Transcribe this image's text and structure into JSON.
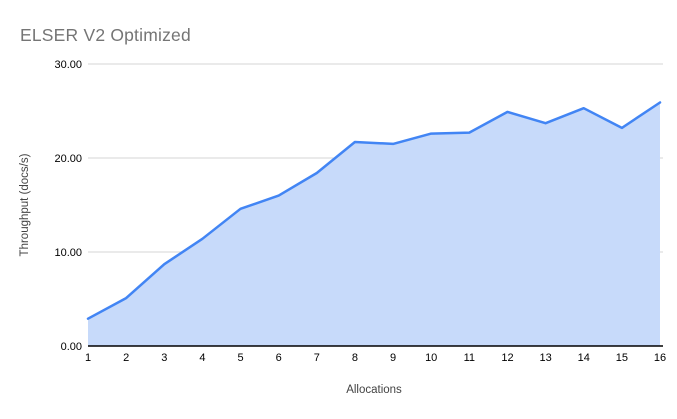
{
  "chart_data": {
    "type": "area",
    "title": "ELSER V2 Optimized",
    "xlabel": "Allocations",
    "ylabel": "Throughput (docs/s)",
    "x": [
      1,
      2,
      3,
      4,
      5,
      6,
      7,
      8,
      9,
      10,
      11,
      12,
      13,
      14,
      15,
      16
    ],
    "series": [
      {
        "name": "Throughput (docs/s)",
        "values": [
          2.9,
          5.1,
          8.7,
          11.4,
          14.6,
          16.0,
          18.4,
          21.7,
          21.5,
          22.6,
          22.7,
          24.9,
          23.7,
          25.3,
          23.2,
          25.9
        ]
      }
    ],
    "x_tick_labels": [
      "1",
      "2",
      "3",
      "4",
      "5",
      "6",
      "7",
      "8",
      "9",
      "10",
      "11",
      "12",
      "13",
      "14",
      "15",
      "16"
    ],
    "y_ticks": [
      0,
      10,
      20,
      30
    ],
    "y_tick_labels": [
      "0.00",
      "10.00",
      "20.00",
      "30.00"
    ],
    "ylim": [
      0,
      30
    ],
    "grid": true,
    "legend": "none",
    "colors": {
      "line": "#4285F4",
      "fill": "#C7DAFA",
      "grid": "#D6D6D6",
      "axis_line": "#000000",
      "title_text": "#757575",
      "tick_text": "#000000",
      "axis_title_text": "#434343"
    }
  }
}
